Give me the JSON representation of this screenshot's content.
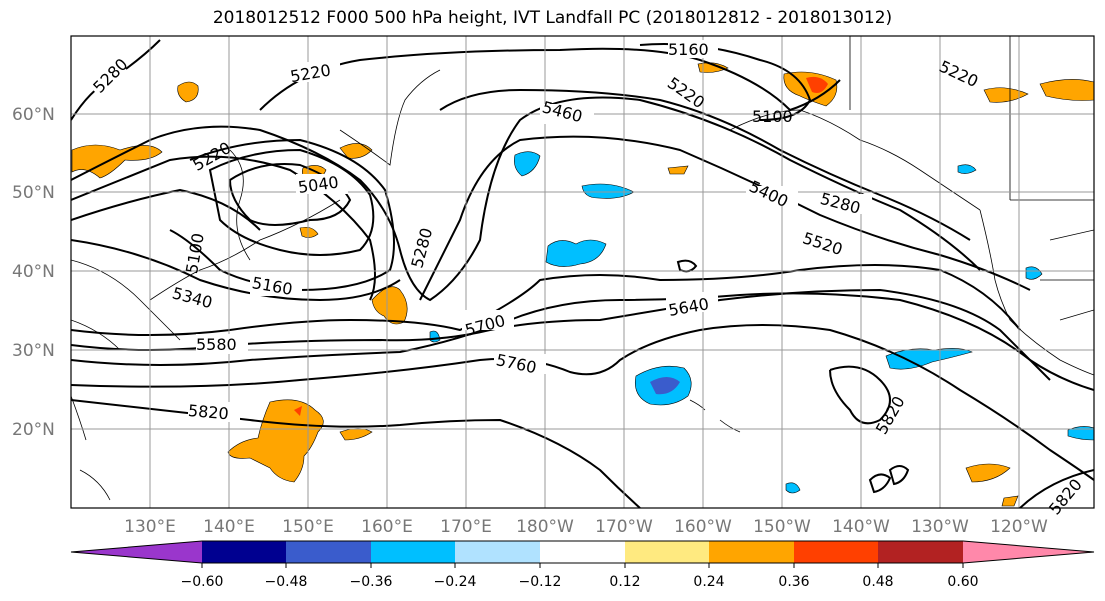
{
  "title": "2018012512 F000 500 hPa height, IVT Landfall PC (2018012812 - 2018013012)",
  "lat_labels": [
    "60°N",
    "50°N",
    "40°N",
    "30°N",
    "20°N"
  ],
  "lon_labels": [
    "130°E",
    "140°E",
    "150°E",
    "160°E",
    "170°E",
    "180°W",
    "170°W",
    "160°W",
    "150°W",
    "140°W",
    "130°W",
    "120°W"
  ],
  "contour_labels": [
    "5280",
    "5220",
    "5160",
    "5220",
    "5100",
    "5220",
    "5460",
    "5280",
    "5400",
    "5520",
    "5040",
    "5100",
    "5160",
    "5340",
    "5280",
    "5700",
    "5640",
    "5580",
    "5760",
    "5820",
    "5820",
    "5820",
    "5220"
  ],
  "colorbar": {
    "ticks": [
      "−0.60",
      "−0.48",
      "−0.36",
      "−0.24",
      "−0.12",
      "0.12",
      "0.24",
      "0.36",
      "0.48",
      "0.60"
    ],
    "colors": [
      "#9a36cc",
      "#000090",
      "#3a5ccc",
      "#00bfff",
      "#b0e2ff",
      "#ffffff",
      "#ffea80",
      "#ffa500",
      "#ff4000",
      "#b22222",
      "#ff88aa"
    ]
  },
  "chart_data": {
    "type": "heatmap",
    "title": "2018012512 F000 500 hPa height, IVT Landfall PC (2018012812 - 2018013012)",
    "contour_field": "500 hPa height",
    "contour_levels": [
      5040,
      5100,
      5160,
      5220,
      5280,
      5340,
      5400,
      5460,
      5520,
      5580,
      5640,
      5700,
      5760,
      5820
    ],
    "shaded_field": "IVT Landfall PC",
    "colorbar_bounds": [
      -0.6,
      -0.48,
      -0.36,
      -0.24,
      -0.12,
      0.12,
      0.24,
      0.36,
      0.48,
      0.6
    ],
    "lat_ticks": [
      60,
      50,
      40,
      30,
      20
    ],
    "lon_ticks": [
      130,
      140,
      150,
      160,
      170,
      180,
      -170,
      -160,
      -150,
      -140,
      -130,
      -120
    ],
    "grid": true
  }
}
